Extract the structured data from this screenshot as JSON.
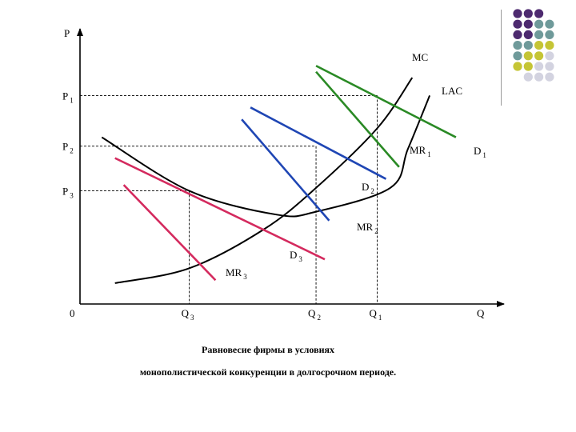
{
  "chart_data": {
    "type": "line",
    "title": "",
    "caption": [
      "Равновесие фирмы в условиях",
      "монополистической конкуренции в долгосрочном периоде."
    ],
    "axes": {
      "y_label": "P",
      "x_label": "Q",
      "origin_label": "0",
      "y_ticks": [
        {
          "base": "P",
          "sub": "1",
          "value": 7.0
        },
        {
          "base": "P",
          "sub": "2",
          "value": 5.3
        },
        {
          "base": "P",
          "sub": "3",
          "value": 3.8
        }
      ],
      "x_ticks": [
        {
          "base": "Q",
          "sub": "3",
          "value": 2.5
        },
        {
          "base": "Q",
          "sub": "2",
          "value": 5.4
        },
        {
          "base": "Q",
          "sub": "1",
          "value": 6.8
        }
      ]
    },
    "series": [
      {
        "name_base": "MC",
        "name_sub": "",
        "color": "#000000",
        "kind": "curve",
        "points": [
          [
            0.8,
            0.7
          ],
          [
            2.5,
            1.2
          ],
          [
            4.2,
            2.5
          ],
          [
            5.4,
            3.9
          ],
          [
            6.8,
            5.9
          ],
          [
            7.6,
            7.6
          ]
        ]
      },
      {
        "name_base": "LAC",
        "name_sub": "",
        "color": "#000000",
        "kind": "curve",
        "points": [
          [
            0.5,
            5.6
          ],
          [
            2.5,
            3.8
          ],
          [
            4.5,
            3.0
          ],
          [
            5.4,
            3.1
          ],
          [
            7.1,
            3.9
          ],
          [
            7.5,
            5.2
          ],
          [
            8.0,
            7.0
          ]
        ]
      },
      {
        "name_base": "D",
        "name_sub": "1",
        "color": "#2a8a25",
        "kind": "line",
        "points": [
          [
            5.4,
            8.0
          ],
          [
            8.6,
            5.6
          ]
        ]
      },
      {
        "name_base": "MR",
        "name_sub": "1",
        "color": "#2a8a25",
        "kind": "line",
        "points": [
          [
            5.4,
            7.8
          ],
          [
            7.3,
            4.6
          ]
        ]
      },
      {
        "name_base": "D",
        "name_sub": "2",
        "color": "#1f46b4",
        "kind": "line",
        "points": [
          [
            3.9,
            6.6
          ],
          [
            7.0,
            4.2
          ]
        ]
      },
      {
        "name_base": "MR",
        "name_sub": "2",
        "color": "#1f46b4",
        "kind": "line",
        "points": [
          [
            3.7,
            6.2
          ],
          [
            5.7,
            2.8
          ]
        ]
      },
      {
        "name_base": "D",
        "name_sub": "3",
        "color": "#d42a5e",
        "kind": "line",
        "points": [
          [
            0.8,
            4.9
          ],
          [
            5.6,
            1.5
          ]
        ]
      },
      {
        "name_base": "MR",
        "name_sub": "3",
        "color": "#d42a5e",
        "kind": "line",
        "points": [
          [
            1.0,
            4.0
          ],
          [
            3.1,
            0.8
          ]
        ]
      }
    ],
    "xlim": [
      0,
      9.7
    ],
    "ylim": [
      0,
      9
    ],
    "grid": false,
    "guide_lines": "dashed projections from P1, P2, P3 to Q1, Q2, Q3"
  },
  "decor": {
    "dot_colors": [
      "#4d2a6f",
      "#6f9a9a",
      "#c5c535",
      "#d3d3e0"
    ],
    "dot_grid": [
      [
        0,
        0,
        0,
        -1
      ],
      [
        0,
        0,
        1,
        1
      ],
      [
        0,
        0,
        1,
        1
      ],
      [
        1,
        1,
        2,
        2
      ],
      [
        1,
        2,
        2,
        3
      ],
      [
        2,
        2,
        3,
        3
      ],
      [
        -1,
        3,
        3,
        3
      ]
    ]
  }
}
